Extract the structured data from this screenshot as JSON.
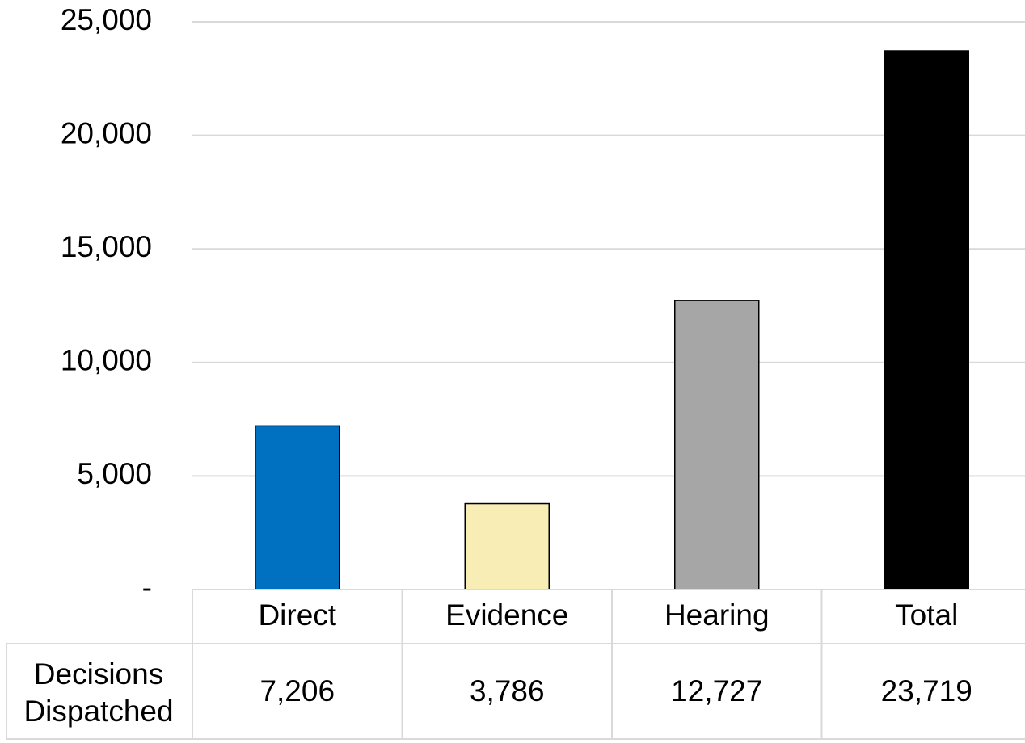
{
  "chart_data": {
    "type": "bar",
    "categories": [
      "Direct",
      "Evidence",
      "Hearing",
      "Total"
    ],
    "series": [
      {
        "name": "Decisions Dispatched",
        "values": [
          7206,
          3786,
          12727,
          23719
        ],
        "value_labels": [
          "7,206",
          "3,786",
          "12,727",
          "23,719"
        ]
      }
    ],
    "colors": [
      "#0070c0",
      "#f9edb6",
      "#a6a6a6",
      "#000000"
    ],
    "ylim": [
      0,
      25000
    ],
    "yticks": [
      {
        "value": 0,
        "label": "-"
      },
      {
        "value": 5000,
        "label": "5,000"
      },
      {
        "value": 10000,
        "label": "10,000"
      },
      {
        "value": 15000,
        "label": "15,000"
      },
      {
        "value": 20000,
        "label": "20,000"
      },
      {
        "value": 25000,
        "label": "25,000"
      }
    ],
    "grid": true,
    "data_table": true
  }
}
